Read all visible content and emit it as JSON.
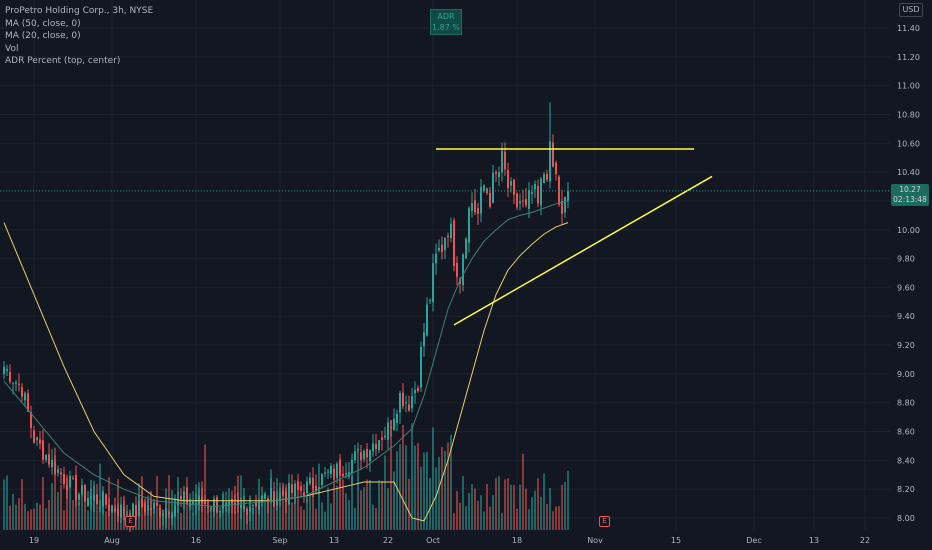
{
  "legend": {
    "symbol": "ProPetro Holding Corp., 3h, NYSE",
    "ma50": "MA (50, close, 0)",
    "ma20": "MA (20, close, 0)",
    "vol": "Vol",
    "adr": "ADR Percent (top, center)"
  },
  "adr_box": {
    "label": "ADR",
    "value": "1.87 %"
  },
  "currency": "USD",
  "price_tag": {
    "price": "10.27",
    "countdown": "02:13:48"
  },
  "earnings_label": "E",
  "colors": {
    "background": "#131722",
    "up": "#26a69a",
    "down": "#ef5350",
    "ma50": "#e2d06a",
    "ma20": "#3f7f74",
    "trendline": "#ffff3b",
    "grid": "#1e222d"
  },
  "chart_data": {
    "type": "candlestick",
    "title": "ProPetro Holding Corp., 3h, NYSE",
    "ylim": [
      7.93,
      11.6
    ],
    "y_ticks": [
      "11.40",
      "11.20",
      "11.00",
      "10.80",
      "10.60",
      "10.40",
      "10.20",
      "10.00",
      "9.80",
      "9.60",
      "9.40",
      "9.20",
      "9.00",
      "8.80",
      "8.60",
      "8.40",
      "8.20",
      "8.00"
    ],
    "x_ticks": [
      "19",
      "Aug",
      "16",
      "Sep",
      "13",
      "22",
      "Oct",
      "18",
      "Nov",
      "15",
      "Dec",
      "13",
      "22"
    ],
    "current_price": 10.27,
    "anchors": [
      {
        "i": 0,
        "c": 9.05
      },
      {
        "i": 6,
        "c": 8.9
      },
      {
        "i": 10,
        "c": 8.55
      },
      {
        "i": 16,
        "c": 8.38
      },
      {
        "i": 24,
        "c": 8.18
      },
      {
        "i": 32,
        "c": 8.12
      },
      {
        "i": 38,
        "c": 8.06
      },
      {
        "i": 42,
        "c": 8.02
      },
      {
        "i": 46,
        "c": 8.08
      },
      {
        "i": 52,
        "c": 8.06
      },
      {
        "i": 60,
        "c": 8.12
      },
      {
        "i": 70,
        "c": 8.1
      },
      {
        "i": 76,
        "c": 8.04
      },
      {
        "i": 84,
        "c": 8.12
      },
      {
        "i": 92,
        "c": 8.16
      },
      {
        "i": 100,
        "c": 8.2
      },
      {
        "i": 108,
        "c": 8.3
      },
      {
        "i": 112,
        "c": 8.34
      },
      {
        "i": 116,
        "c": 8.4
      },
      {
        "i": 122,
        "c": 8.5
      },
      {
        "i": 128,
        "c": 8.62
      },
      {
        "i": 132,
        "c": 8.85
      },
      {
        "i": 135,
        "c": 8.8
      },
      {
        "i": 138,
        "c": 8.95
      },
      {
        "i": 140,
        "c": 9.3
      },
      {
        "i": 142,
        "c": 9.55
      },
      {
        "i": 144,
        "c": 9.78
      },
      {
        "i": 146,
        "c": 9.9
      },
      {
        "i": 148,
        "c": 10.05
      },
      {
        "i": 150,
        "c": 9.85
      },
      {
        "i": 152,
        "c": 9.7
      },
      {
        "i": 154,
        "c": 10.05
      },
      {
        "i": 156,
        "c": 10.2
      },
      {
        "i": 158,
        "c": 10.1
      },
      {
        "i": 160,
        "c": 10.3
      },
      {
        "i": 162,
        "c": 10.25
      },
      {
        "i": 164,
        "c": 10.35
      },
      {
        "i": 166,
        "c": 10.45
      },
      {
        "i": 168,
        "c": 10.3
      },
      {
        "i": 170,
        "c": 10.15
      },
      {
        "i": 172,
        "c": 10.2
      },
      {
        "i": 174,
        "c": 10.1
      },
      {
        "i": 176,
        "c": 10.25
      },
      {
        "i": 178,
        "c": 10.15
      },
      {
        "i": 180,
        "c": 10.4
      },
      {
        "i": 182,
        "c": 10.5
      },
      {
        "i": 184,
        "c": 10.35
      },
      {
        "i": 186,
        "c": 10.05
      },
      {
        "i": 188,
        "c": 10.27
      }
    ],
    "candle_count": 189,
    "volume_ylim": [
      0,
      1.0
    ],
    "ma50_points": [
      [
        0,
        10.05
      ],
      [
        10,
        9.55
      ],
      [
        20,
        9.05
      ],
      [
        30,
        8.6
      ],
      [
        40,
        8.3
      ],
      [
        50,
        8.15
      ],
      [
        60,
        8.12
      ],
      [
        70,
        8.12
      ],
      [
        80,
        8.12
      ],
      [
        90,
        8.12
      ],
      [
        100,
        8.15
      ],
      [
        110,
        8.2
      ],
      [
        120,
        8.25
      ],
      [
        130,
        8.25
      ],
      [
        136,
        8.0
      ],
      [
        140,
        7.98
      ],
      [
        144,
        8.15
      ],
      [
        148,
        8.4
      ],
      [
        152,
        8.7
      ],
      [
        156,
        9.0
      ],
      [
        160,
        9.3
      ],
      [
        164,
        9.55
      ],
      [
        168,
        9.72
      ],
      [
        172,
        9.82
      ],
      [
        176,
        9.9
      ],
      [
        180,
        9.97
      ],
      [
        184,
        10.02
      ],
      [
        188,
        10.05
      ]
    ],
    "ma20_points": [
      [
        0,
        8.95
      ],
      [
        10,
        8.7
      ],
      [
        20,
        8.45
      ],
      [
        30,
        8.3
      ],
      [
        40,
        8.2
      ],
      [
        50,
        8.12
      ],
      [
        60,
        8.1
      ],
      [
        70,
        8.08
      ],
      [
        80,
        8.1
      ],
      [
        90,
        8.12
      ],
      [
        100,
        8.15
      ],
      [
        110,
        8.25
      ],
      [
        120,
        8.35
      ],
      [
        130,
        8.5
      ],
      [
        136,
        8.62
      ],
      [
        140,
        8.85
      ],
      [
        144,
        9.15
      ],
      [
        148,
        9.45
      ],
      [
        152,
        9.65
      ],
      [
        156,
        9.8
      ],
      [
        160,
        9.92
      ],
      [
        164,
        10.0
      ],
      [
        168,
        10.07
      ],
      [
        172,
        10.1
      ],
      [
        176,
        10.12
      ],
      [
        180,
        10.15
      ],
      [
        184,
        10.18
      ],
      [
        188,
        10.2
      ]
    ],
    "trendlines": [
      {
        "name": "resistance",
        "from": [
          144,
          10.56
        ],
        "to": [
          230,
          10.56
        ]
      },
      {
        "name": "support",
        "from": [
          150,
          9.34
        ],
        "to": [
          236,
          10.37
        ]
      }
    ],
    "earnings_markers": [
      {
        "i": 42
      },
      {
        "i": 200
      }
    ]
  }
}
